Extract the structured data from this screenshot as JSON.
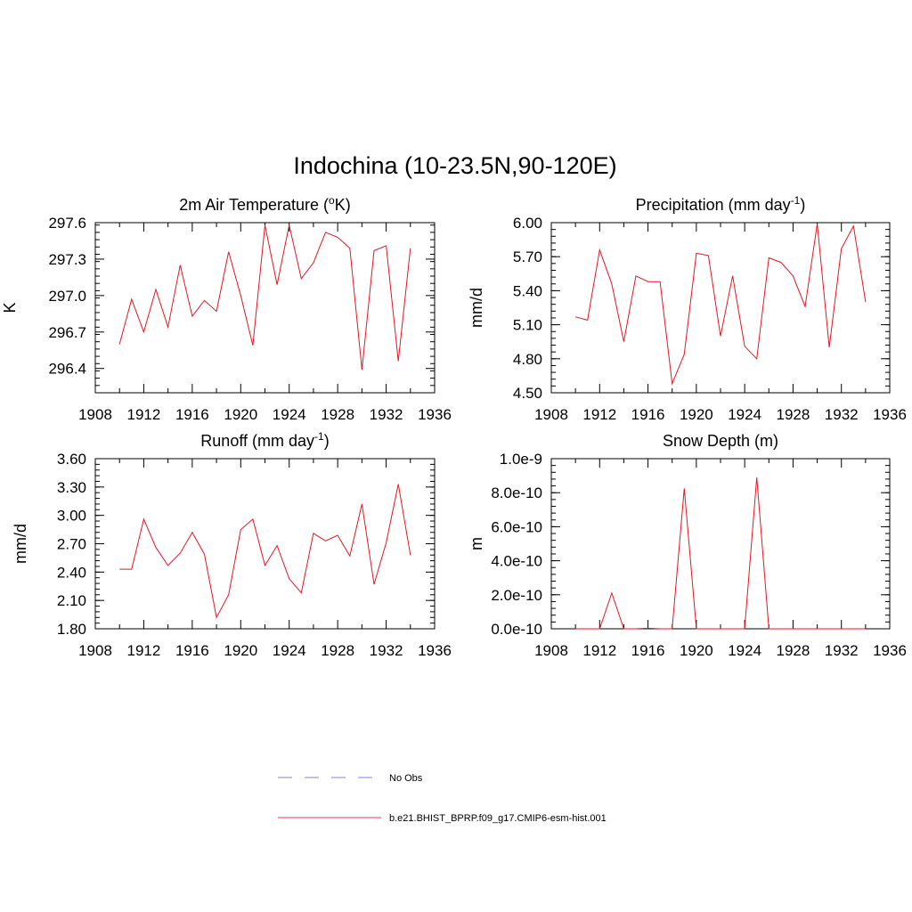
{
  "title": "Indochina (10-23.5N,90-120E)",
  "colors": {
    "model": "#e8141e",
    "obs": "#9a9ae6",
    "model_legend": "#f06070"
  },
  "legend": {
    "obs_label": "No Obs",
    "model_label": "b.e21.BHIST_BPRP.f09_g17.CMIP6-esm-hist.001"
  },
  "chart_data": [
    {
      "type": "line",
      "title": "2m Air Temperature (",
      "title_sup": "o",
      "title_tail": "K)",
      "xlabel": "",
      "ylabel": "K",
      "xlim": [
        1908,
        1936
      ],
      "ylim": [
        296.2,
        297.6
      ],
      "xticks": [
        "1908",
        "1912",
        "1916",
        "1920",
        "1924",
        "1928",
        "1932",
        "1936"
      ],
      "yticks": [
        "296.4",
        "296.7",
        "297.0",
        "297.3",
        "297.6"
      ],
      "series": [
        {
          "x": [
            1910,
            1911,
            1912,
            1913,
            1914,
            1915,
            1916,
            1917,
            1918,
            1919,
            1920,
            1921,
            1922,
            1923,
            1924,
            1925,
            1926,
            1927,
            1928,
            1929,
            1930,
            1931,
            1932,
            1933,
            1934
          ],
          "values": [
            296.6,
            296.97,
            296.7,
            297.05,
            296.74,
            297.25,
            296.83,
            296.96,
            296.87,
            297.36,
            297.0,
            296.59,
            297.58,
            297.09,
            297.58,
            297.14,
            297.27,
            297.52,
            297.48,
            297.39,
            296.39,
            297.37,
            297.41,
            296.46,
            297.39
          ]
        }
      ]
    },
    {
      "type": "line",
      "title": "Precipitation (mm day",
      "title_sup": "-1",
      "title_tail": ")",
      "xlabel": "",
      "ylabel": "mm/d",
      "xlim": [
        1908,
        1936
      ],
      "ylim": [
        4.5,
        6.0
      ],
      "xticks": [
        "1908",
        "1912",
        "1916",
        "1920",
        "1924",
        "1928",
        "1932",
        "1936"
      ],
      "yticks": [
        "4.50",
        "4.80",
        "5.10",
        "5.40",
        "5.70",
        "6.00"
      ],
      "series": [
        {
          "x": [
            1910,
            1911,
            1912,
            1913,
            1914,
            1915,
            1916,
            1917,
            1918,
            1919,
            1920,
            1921,
            1922,
            1923,
            1924,
            1925,
            1926,
            1927,
            1928,
            1929,
            1930,
            1931,
            1932,
            1933,
            1934
          ],
          "values": [
            5.17,
            5.14,
            5.76,
            5.46,
            4.95,
            5.53,
            5.48,
            5.48,
            4.58,
            4.84,
            5.73,
            5.71,
            5.0,
            5.53,
            4.91,
            4.8,
            5.69,
            5.65,
            5.53,
            5.26,
            5.99,
            4.9,
            5.77,
            5.97,
            5.3
          ]
        }
      ]
    },
    {
      "type": "line",
      "title": "Runoff (mm day",
      "title_sup": "-1",
      "title_tail": ")",
      "xlabel": "",
      "ylabel": "mm/d",
      "xlim": [
        1908,
        1936
      ],
      "ylim": [
        1.8,
        3.6
      ],
      "xticks": [
        "1908",
        "1912",
        "1916",
        "1920",
        "1924",
        "1928",
        "1932",
        "1936"
      ],
      "yticks": [
        "1.80",
        "2.10",
        "2.40",
        "2.70",
        "3.00",
        "3.30",
        "3.60"
      ],
      "series": [
        {
          "x": [
            1910,
            1911,
            1912,
            1913,
            1914,
            1915,
            1916,
            1917,
            1918,
            1919,
            1920,
            1921,
            1922,
            1923,
            1924,
            1925,
            1926,
            1927,
            1928,
            1929,
            1930,
            1931,
            1932,
            1933,
            1934
          ],
          "values": [
            2.43,
            2.43,
            2.96,
            2.66,
            2.47,
            2.6,
            2.82,
            2.59,
            1.92,
            2.16,
            2.85,
            2.96,
            2.47,
            2.68,
            2.33,
            2.18,
            2.81,
            2.73,
            2.79,
            2.57,
            3.12,
            2.27,
            2.71,
            3.33,
            2.58
          ]
        }
      ]
    },
    {
      "type": "line",
      "title": "Snow Depth (m)",
      "title_sup": "",
      "title_tail": "",
      "xlabel": "",
      "ylabel": "m",
      "xlim": [
        1908,
        1936
      ],
      "ylim": [
        0,
        1e-09
      ],
      "xticks": [
        "1908",
        "1912",
        "1916",
        "1920",
        "1924",
        "1928",
        "1932",
        "1936"
      ],
      "yticks": [
        "0.0e-10",
        "2.0e-10",
        "4.0e-10",
        "6.0e-10",
        "8.0e-10",
        "1.0e-9"
      ],
      "series": [
        {
          "x": [
            1910,
            1911,
            1912,
            1913,
            1914,
            1915,
            1916,
            1917,
            1918,
            1919,
            1920,
            1921,
            1922,
            1923,
            1924,
            1925,
            1926,
            1927,
            1928,
            1929,
            1930,
            1931,
            1932,
            1933,
            1934
          ],
          "values": [
            0,
            0,
            0,
            2.1e-10,
            0,
            0,
            3e-12,
            0,
            0,
            8.25e-10,
            0,
            0,
            0,
            0,
            0,
            8.9e-10,
            0,
            0,
            0,
            0,
            0,
            0,
            0,
            0,
            0
          ]
        }
      ]
    }
  ]
}
